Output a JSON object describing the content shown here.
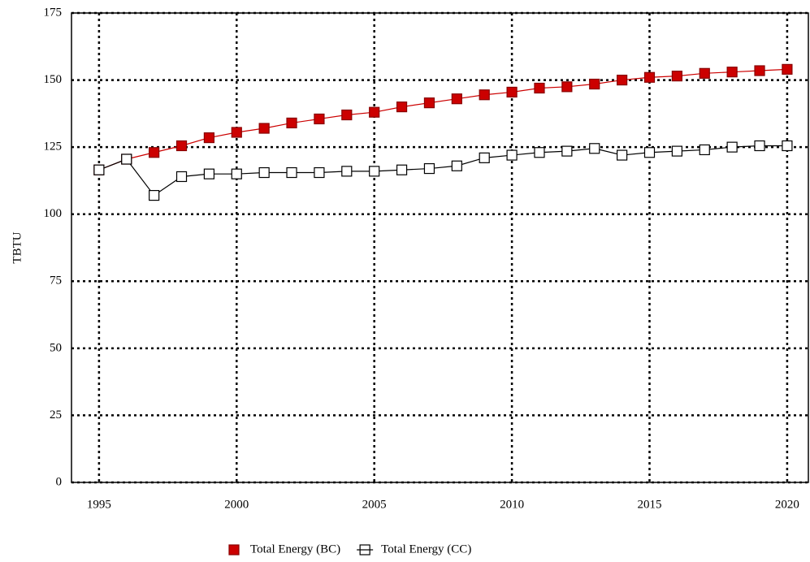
{
  "chart_data": {
    "type": "line",
    "y_label": "TBTU",
    "x": [
      1995,
      1996,
      1997,
      1998,
      1999,
      2000,
      2001,
      2002,
      2003,
      2004,
      2005,
      2006,
      2007,
      2008,
      2009,
      2010,
      2011,
      2012,
      2013,
      2014,
      2015,
      2016,
      2017,
      2018,
      2019,
      2020
    ],
    "series": [
      {
        "name": "Total Energy (BC)",
        "color": "#cc0000",
        "marker": "filled-square",
        "values": [
          116.5,
          120.5,
          123,
          125.5,
          128.5,
          130.5,
          132,
          134,
          135.5,
          137,
          138,
          140,
          141.5,
          143,
          144.5,
          145.5,
          147,
          147.5,
          148.5,
          150,
          151,
          151.5,
          152.5,
          153,
          153.5,
          154
        ]
      },
      {
        "name": "Total Energy (CC)",
        "color": "#000000",
        "marker": "open-square",
        "values": [
          116.5,
          120.5,
          107,
          114,
          115,
          115,
          115.5,
          115.5,
          115.5,
          116,
          116,
          116.5,
          117,
          118,
          121,
          122,
          123,
          123.5,
          124.5,
          122,
          123,
          123.5,
          124,
          125,
          125.5,
          125.5
        ]
      }
    ],
    "xlim": [
      1994,
      2020.8
    ],
    "xticks": [
      1995,
      2000,
      2005,
      2010,
      2015,
      2020
    ],
    "ylim": [
      0,
      175
    ],
    "yticks": [
      0,
      25,
      50,
      75,
      100,
      125,
      150,
      175
    ],
    "grid": true,
    "legend": "bottom"
  }
}
